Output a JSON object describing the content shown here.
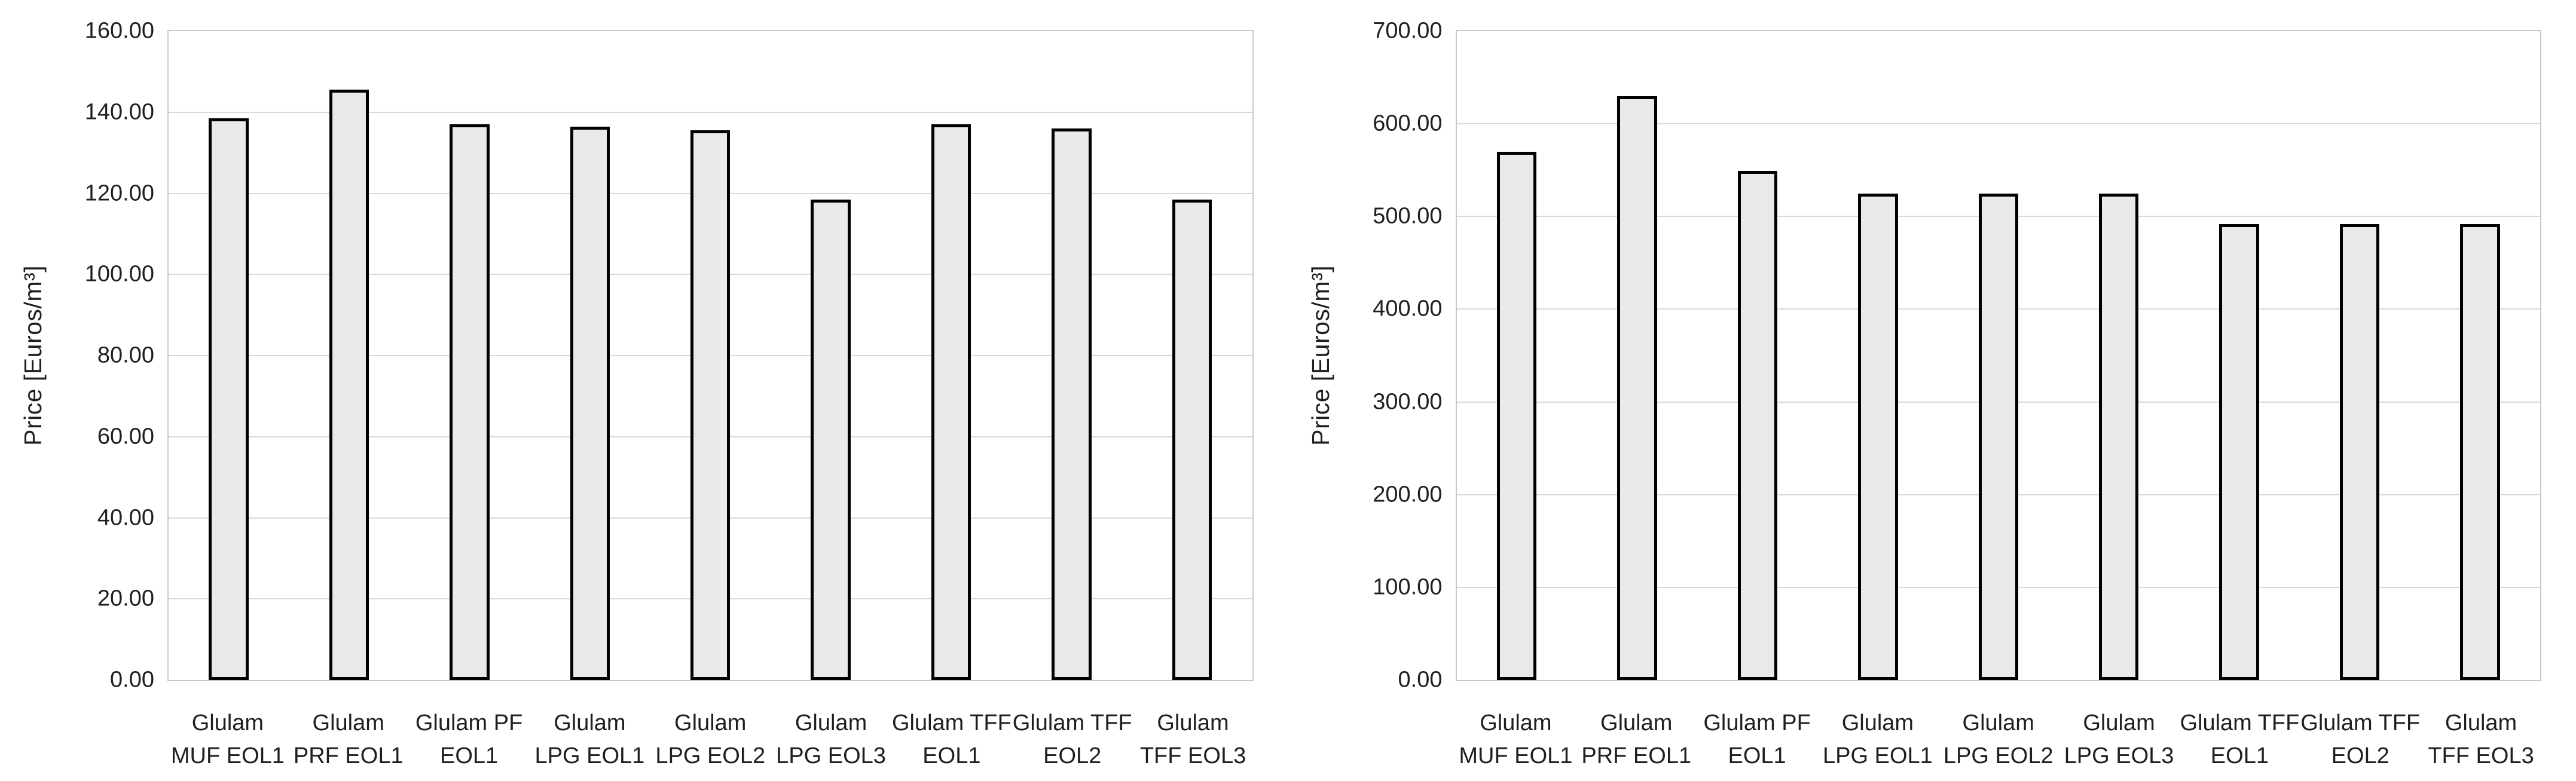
{
  "colors": {
    "background": "#ffffff",
    "bar_fill": "#e9e9e9",
    "bar_border": "#000000",
    "gridline": "#d9d9d9",
    "plot_border": "#c9c9c9",
    "text": "#1f1f1f"
  },
  "chart_data": [
    {
      "type": "bar",
      "title": "",
      "xlabel": "",
      "ylabel": "Price [Euros/m³]",
      "ylim": [
        0,
        160
      ],
      "ytick_step": 20,
      "ytick_labels": [
        "160.00",
        "140.00",
        "120.00",
        "100.00",
        "80.00",
        "60.00",
        "40.00",
        "20.00",
        "0.00"
      ],
      "grid": true,
      "legend": "none",
      "categories": [
        "Glulam MUF EOL1",
        "Glulam PRF EOL1",
        "Glulam PF EOL1",
        "Glulam LPG EOL1",
        "Glulam LPG EOL2",
        "Glulam LPG EOL3",
        "Glulam TFF EOL1",
        "Glulam TFF EOL2",
        "Glulam TFF EOL3"
      ],
      "categories_display": [
        "Glulam\nMUF EOL1",
        "Glulam\nPRF EOL1",
        "Glulam PF\nEOL1",
        "Glulam\nLPG EOL1",
        "Glulam\nLPG EOL2",
        "Glulam\nLPG EOL3",
        "Glulam TFF\nEOL1",
        "Glulam TFF\nEOL2",
        "Glulam\nTFF EOL3"
      ],
      "values": [
        138.5,
        145.5,
        137.0,
        136.5,
        135.5,
        118.5,
        137.0,
        136.0,
        118.5
      ]
    },
    {
      "type": "bar",
      "title": "",
      "xlabel": "",
      "ylabel": "Price [Euros/m³]",
      "ylim": [
        0,
        700
      ],
      "ytick_step": 100,
      "ytick_labels": [
        "700.00",
        "600.00",
        "500.00",
        "400.00",
        "300.00",
        "200.00",
        "100.00",
        "0.00"
      ],
      "grid": true,
      "legend": "none",
      "categories": [
        "Glulam MUF EOL1",
        "Glulam PRF EOL1",
        "Glulam PF EOL1",
        "Glulam LPG EOL1",
        "Glulam LPG EOL2",
        "Glulam LPG EOL3",
        "Glulam TFF EOL1",
        "Glulam TFF EOL2",
        "Glulam TFF EOL3"
      ],
      "categories_display": [
        "Glulam\nMUF EOL1",
        "Glulam\nPRF EOL1",
        "Glulam PF\nEOL1",
        "Glulam\nLPG EOL1",
        "Glulam\nLPG EOL2",
        "Glulam\nLPG EOL3",
        "Glulam TFF\nEOL1",
        "Glulam TFF\nEOL2",
        "Glulam\nTFF EOL3"
      ],
      "values": [
        570,
        630,
        549,
        525,
        525,
        525,
        492,
        492,
        492
      ]
    }
  ]
}
